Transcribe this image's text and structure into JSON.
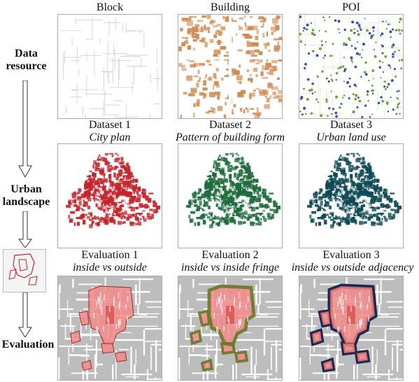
{
  "rows": {
    "data_resource": "Data\nresource",
    "urban_landscape": "Urban\nlandscape",
    "evaluation": "Evaluation"
  },
  "layers": [
    "Block",
    "Building",
    "POI"
  ],
  "datasets": [
    {
      "title": "Dataset 1",
      "subtitle": "City plan",
      "color": "#c0272d"
    },
    {
      "title": "Dataset 2",
      "subtitle": "Pattern of building form",
      "color": "#1f6b3d"
    },
    {
      "title": "Dataset 3",
      "subtitle": "Urban land use",
      "color": "#0e4a55"
    }
  ],
  "evaluations": [
    {
      "title": "Evaluation 1",
      "subtitle": "inside vs outside"
    },
    {
      "title": "Evaluation 2",
      "subtitle": "inside vs inside fringe"
    },
    {
      "title": "Evaluation 3",
      "subtitle": "inside vs outside adjacency"
    }
  ],
  "colors": {
    "block_lines": "#cccccc",
    "building_fill": "#cf8a52",
    "poi_green": "#6aa63a",
    "poi_blue": "#3551b0",
    "eval_base": "#bdbdbd",
    "eval_inside": "#f28b8b",
    "eval_fringe": "#6a7a2a",
    "eval_adjacency": "#0d2a5a"
  }
}
